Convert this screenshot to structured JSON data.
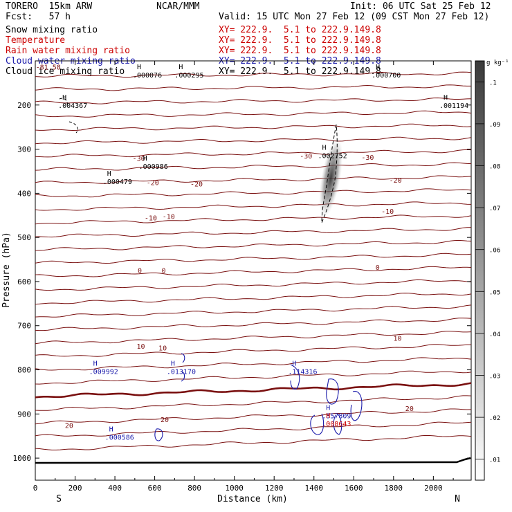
{
  "header": {
    "model": "TORERO  15km ARW",
    "org": "NCAR/MMM",
    "init": "Init: 06 UTC Sat 25 Feb 12",
    "fcst": "Fcst:   57 h",
    "valid": "Valid: 15 UTC Mon 27 Feb 12 (09 CST Mon 27 Feb 12)"
  },
  "fields": [
    {
      "name": "Snow mixing ratio",
      "xy": "XY= 222.9.  5.1 to 222.9.149.8",
      "color": "#000000"
    },
    {
      "name": "Temperature",
      "xy": "XY= 222.9.  5.1 to 222.9.149.8",
      "color": "#cc0000"
    },
    {
      "name": "Rain water mixing ratio",
      "xy": "XY= 222.9.  5.1 to 222.9.149.8",
      "color": "#cc0000"
    },
    {
      "name": "Cloud water mixing ratio",
      "xy": "XY= 222.9.  5.1 to 222.9.149.8",
      "color": "#1a1aaa"
    },
    {
      "name": "Cloud ice mixing ratio",
      "xy": "XY= 222.9.  5.1 to 222.9.149.8",
      "color": "#000000"
    }
  ],
  "chart_data": {
    "type": "contour",
    "xlabel": "Distance (km)",
    "ylabel": "Pressure (hPa)",
    "xlim": [
      0,
      2190
    ],
    "ylim": [
      1050,
      100
    ],
    "x_ticks": [
      "0",
      "200",
      "400",
      "600",
      "800",
      "1000",
      "1200",
      "1400",
      "1600",
      "1800",
      "2000"
    ],
    "y_ticks": [
      "200",
      "300",
      "400",
      "500",
      "600",
      "700",
      "800",
      "900",
      "1000"
    ],
    "x_ends": {
      "left": "S",
      "right": "N"
    },
    "colorbar": {
      "unit": "g kg⁻¹",
      "ticks": [
        ".01",
        ".02",
        ".03",
        ".04",
        ".05",
        ".06",
        ".07",
        ".08",
        ".09",
        ".1"
      ],
      "color_low": "#ffffff",
      "color_high": "#3a3a3a"
    },
    "temperature_contour_labels": [
      {
        "text": "-81.58",
        "x": 65,
        "p": 113
      },
      {
        "text": "-30",
        "x": 520,
        "p": 320
      },
      {
        "text": "-30",
        "x": 1360,
        "p": 315
      },
      {
        "text": "-30",
        "x": 1670,
        "p": 318
      },
      {
        "text": "-20",
        "x": 590,
        "p": 375
      },
      {
        "text": "-20",
        "x": 810,
        "p": 378
      },
      {
        "text": "-20",
        "x": 1810,
        "p": 370
      },
      {
        "text": "-10",
        "x": 580,
        "p": 455
      },
      {
        "text": "-10",
        "x": 670,
        "p": 452
      },
      {
        "text": "-10",
        "x": 1770,
        "p": 440
      },
      {
        "text": "0",
        "x": 525,
        "p": 574
      },
      {
        "text": "0",
        "x": 645,
        "p": 574
      },
      {
        "text": "0",
        "x": 1720,
        "p": 567
      },
      {
        "text": "10",
        "x": 530,
        "p": 746
      },
      {
        "text": "10",
        "x": 640,
        "p": 750
      },
      {
        "text": "10",
        "x": 1820,
        "p": 728
      },
      {
        "text": "20",
        "x": 170,
        "p": 925
      },
      {
        "text": "20",
        "x": 650,
        "p": 912
      },
      {
        "text": "20",
        "x": 1880,
        "p": 887
      }
    ],
    "maxima_labels": [
      {
        "text": ".000076",
        "x": 490,
        "p": 128,
        "color": "#000000"
      },
      {
        "text": ".000295",
        "x": 700,
        "p": 128,
        "color": "#000000"
      },
      {
        "text": ".000700",
        "x": 1690,
        "p": 128,
        "color": "#000000"
      },
      {
        "text": ".004367",
        "x": 115,
        "p": 197,
        "color": "#000000"
      },
      {
        "text": ".001194",
        "x": 2030,
        "p": 197,
        "color": "#000000"
      },
      {
        "text": ".002752",
        "x": 1420,
        "p": 311,
        "color": "#000000"
      },
      {
        "text": ".000986",
        "x": 520,
        "p": 335,
        "color": "#000000"
      },
      {
        "text": ".000479",
        "x": 340,
        "p": 370,
        "color": "#000000"
      },
      {
        "text": ".009992",
        "x": 270,
        "p": 800,
        "color": "#1a1aaa"
      },
      {
        "text": ".013170",
        "x": 660,
        "p": 800,
        "color": "#1a1aaa"
      },
      {
        "text": ".114316",
        "x": 1270,
        "p": 800,
        "color": "#1a1aaa"
      },
      {
        "text": ".357809",
        "x": 1440,
        "p": 900,
        "color": "#1a1aaa"
      },
      {
        "text": ".008643",
        "x": 1440,
        "p": 918,
        "color": "#cc0000"
      },
      {
        "text": ".000586",
        "x": 350,
        "p": 949,
        "color": "#1a1aaa"
      }
    ]
  }
}
